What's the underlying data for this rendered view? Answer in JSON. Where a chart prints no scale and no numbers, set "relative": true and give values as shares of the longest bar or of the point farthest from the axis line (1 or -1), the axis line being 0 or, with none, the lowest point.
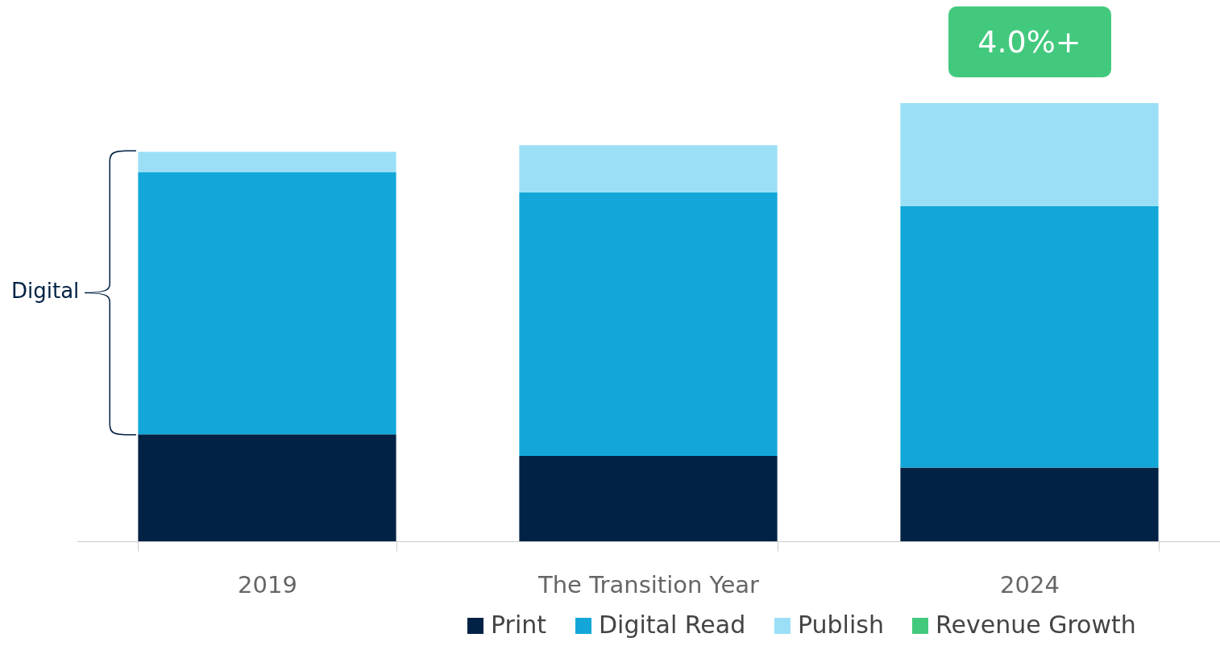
{
  "chart_data": {
    "type": "bar",
    "stacked": true,
    "relative": true,
    "categories": [
      "2019",
      "The Transition Year",
      "2024"
    ],
    "series": [
      {
        "name": "Print",
        "color": "#012244",
        "values": [
          0.244,
          0.195,
          0.168
        ]
      },
      {
        "name": "Digital Read",
        "color": "#13a7d9",
        "values": [
          0.599,
          0.601,
          0.597
        ]
      },
      {
        "name": "Publish",
        "color": "#9adff6",
        "values": [
          0.046,
          0.108,
          0.235
        ]
      },
      {
        "name": "Revenue Growth",
        "color": "#43c97e",
        "values": [
          null,
          null,
          null
        ]
      }
    ],
    "annotations": [
      "4.0%+",
      "Digital"
    ],
    "legend": "bottom"
  }
}
